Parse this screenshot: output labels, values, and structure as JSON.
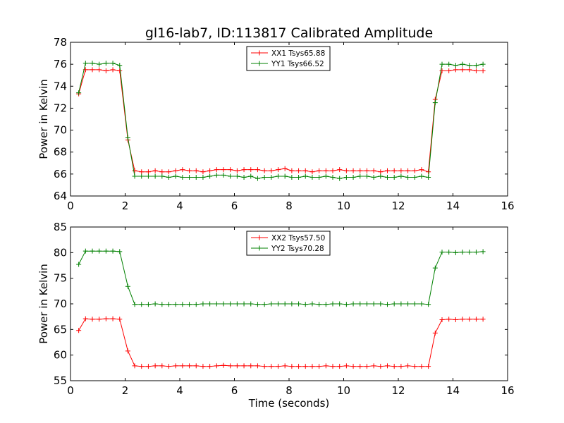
{
  "title": "gl16-lab7, ID:113817 Calibrated Amplitude",
  "chart_data": [
    {
      "type": "line",
      "title": "gl16-lab7, ID:113817 Calibrated Amplitude",
      "xlabel": "",
      "ylabel": "Power in Kelvin",
      "xlim": [
        0,
        16
      ],
      "ylim": [
        64,
        78
      ],
      "xticks": [
        "0",
        "2",
        "4",
        "6",
        "8",
        "10",
        "12",
        "14",
        "16"
      ],
      "yticks": [
        "64",
        "66",
        "68",
        "70",
        "72",
        "74",
        "76",
        "78"
      ],
      "grid": false,
      "legend_position": "top-center",
      "x": [
        0.3,
        0.55,
        0.8,
        1.05,
        1.3,
        1.55,
        1.8,
        2.1,
        2.35,
        2.6,
        2.85,
        3.1,
        3.35,
        3.6,
        3.85,
        4.1,
        4.35,
        4.6,
        4.85,
        5.1,
        5.35,
        5.6,
        5.85,
        6.1,
        6.35,
        6.6,
        6.85,
        7.1,
        7.35,
        7.6,
        7.85,
        8.1,
        8.35,
        8.6,
        8.85,
        9.1,
        9.35,
        9.6,
        9.85,
        10.1,
        10.35,
        10.6,
        10.85,
        11.1,
        11.35,
        11.6,
        11.85,
        12.1,
        12.35,
        12.6,
        12.85,
        13.1,
        13.35,
        13.6,
        13.85,
        14.1,
        14.35,
        14.6,
        14.85,
        15.1
      ],
      "series": [
        {
          "name": "XX1 Tsys65.88",
          "color": "#ff0000",
          "values": [
            73.3,
            75.5,
            75.5,
            75.5,
            75.4,
            75.5,
            75.4,
            69.1,
            66.3,
            66.2,
            66.2,
            66.3,
            66.2,
            66.2,
            66.3,
            66.4,
            66.3,
            66.3,
            66.2,
            66.3,
            66.4,
            66.4,
            66.4,
            66.3,
            66.4,
            66.4,
            66.4,
            66.3,
            66.3,
            66.4,
            66.5,
            66.3,
            66.3,
            66.3,
            66.2,
            66.3,
            66.3,
            66.3,
            66.4,
            66.3,
            66.3,
            66.3,
            66.3,
            66.3,
            66.2,
            66.3,
            66.3,
            66.3,
            66.3,
            66.3,
            66.4,
            66.2,
            72.8,
            75.4,
            75.4,
            75.5,
            75.5,
            75.5,
            75.4,
            75.4
          ]
        },
        {
          "name": "YY1 Tsys66.52",
          "color": "#008000",
          "values": [
            73.4,
            76.1,
            76.1,
            76.0,
            76.1,
            76.1,
            75.9,
            69.3,
            65.8,
            65.8,
            65.8,
            65.8,
            65.8,
            65.7,
            65.8,
            65.7,
            65.7,
            65.7,
            65.7,
            65.8,
            65.9,
            65.9,
            65.8,
            65.8,
            65.7,
            65.8,
            65.6,
            65.7,
            65.7,
            65.8,
            65.8,
            65.7,
            65.7,
            65.8,
            65.7,
            65.7,
            65.8,
            65.7,
            65.6,
            65.7,
            65.7,
            65.8,
            65.8,
            65.7,
            65.8,
            65.7,
            65.7,
            65.8,
            65.7,
            65.7,
            65.8,
            65.7,
            72.5,
            76.0,
            76.0,
            75.9,
            76.0,
            75.9,
            75.9,
            76.0
          ]
        }
      ]
    },
    {
      "type": "line",
      "title": "",
      "xlabel": "Time (seconds)",
      "ylabel": "Power in Kelvin",
      "xlim": [
        0,
        16
      ],
      "ylim": [
        55,
        85
      ],
      "xticks": [
        "0",
        "2",
        "4",
        "6",
        "8",
        "10",
        "12",
        "14",
        "16"
      ],
      "yticks": [
        "55",
        "60",
        "65",
        "70",
        "75",
        "80",
        "85"
      ],
      "grid": false,
      "legend_position": "top-center",
      "x": [
        0.3,
        0.55,
        0.8,
        1.05,
        1.3,
        1.55,
        1.8,
        2.1,
        2.35,
        2.6,
        2.85,
        3.1,
        3.35,
        3.6,
        3.85,
        4.1,
        4.35,
        4.6,
        4.85,
        5.1,
        5.35,
        5.6,
        5.85,
        6.1,
        6.35,
        6.6,
        6.85,
        7.1,
        7.35,
        7.6,
        7.85,
        8.1,
        8.35,
        8.6,
        8.85,
        9.1,
        9.35,
        9.6,
        9.85,
        10.1,
        10.35,
        10.6,
        10.85,
        11.1,
        11.35,
        11.6,
        11.85,
        12.1,
        12.35,
        12.6,
        12.85,
        13.1,
        13.35,
        13.6,
        13.85,
        14.1,
        14.35,
        14.6,
        14.85,
        15.1
      ],
      "series": [
        {
          "name": "XX2 Tsys57.50",
          "color": "#ff0000",
          "values": [
            64.8,
            67.1,
            67.0,
            67.0,
            67.1,
            67.1,
            67.0,
            60.8,
            57.9,
            57.8,
            57.8,
            57.9,
            57.9,
            57.8,
            57.9,
            57.9,
            57.9,
            57.9,
            57.8,
            57.8,
            57.9,
            58.0,
            57.9,
            57.9,
            57.9,
            57.9,
            57.9,
            57.8,
            57.8,
            57.8,
            57.9,
            57.8,
            57.8,
            57.8,
            57.8,
            57.8,
            57.9,
            57.8,
            57.8,
            57.9,
            57.8,
            57.8,
            57.8,
            57.9,
            57.8,
            57.9,
            57.8,
            57.8,
            57.9,
            57.8,
            57.8,
            57.8,
            64.3,
            66.9,
            67.0,
            66.9,
            67.0,
            67.0,
            67.0,
            67.0
          ]
        },
        {
          "name": "YY2 Tsys70.28",
          "color": "#008000",
          "values": [
            77.7,
            80.3,
            80.3,
            80.3,
            80.3,
            80.3,
            80.2,
            73.4,
            69.9,
            69.9,
            69.9,
            70.0,
            69.9,
            69.9,
            69.9,
            69.9,
            69.9,
            69.9,
            70.0,
            70.0,
            70.0,
            70.0,
            70.0,
            70.0,
            70.0,
            70.0,
            69.9,
            69.9,
            70.0,
            70.0,
            70.0,
            70.0,
            70.0,
            69.9,
            70.0,
            69.9,
            69.9,
            70.0,
            70.0,
            69.9,
            70.0,
            70.0,
            70.0,
            70.0,
            70.0,
            69.9,
            70.0,
            70.0,
            70.0,
            70.0,
            70.0,
            69.9,
            77.0,
            80.1,
            80.1,
            80.0,
            80.1,
            80.1,
            80.1,
            80.2
          ]
        }
      ]
    }
  ]
}
